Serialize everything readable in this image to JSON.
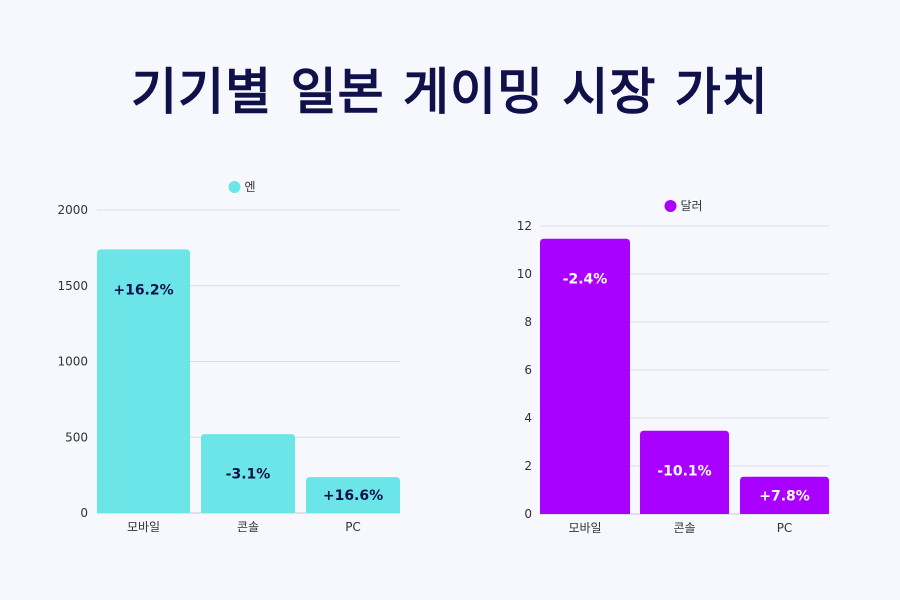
{
  "title": "기기별 일본 게이밍 시장 가치",
  "chart_data": [
    {
      "type": "bar",
      "categories": [
        "모바일",
        "콘솔",
        "PC"
      ],
      "series": [
        {
          "name": "엔",
          "values": [
            1740,
            521,
            237
          ],
          "color": "#6ce5e8"
        }
      ],
      "data_labels": [
        "+16.2%",
        "-3.1%",
        "+16.6%"
      ],
      "data_label_color": "#10104a",
      "ylim": [
        0,
        2000
      ],
      "yticks": [
        0,
        500,
        1000,
        1500,
        2000
      ],
      "grid": true,
      "legend": "top-center"
    },
    {
      "type": "bar",
      "categories": [
        "모바일",
        "콘솔",
        "PC"
      ],
      "series": [
        {
          "name": "달러",
          "values": [
            11.47,
            3.47,
            1.55
          ],
          "color": "#aa00ff"
        }
      ],
      "data_labels": [
        "-2.4%",
        "-10.1%",
        "+7.8%"
      ],
      "data_label_color": "#ffffff",
      "ylim": [
        0,
        12
      ],
      "yticks": [
        0,
        2,
        4,
        6,
        8,
        10,
        12
      ],
      "grid": true,
      "legend": "top-center"
    }
  ]
}
